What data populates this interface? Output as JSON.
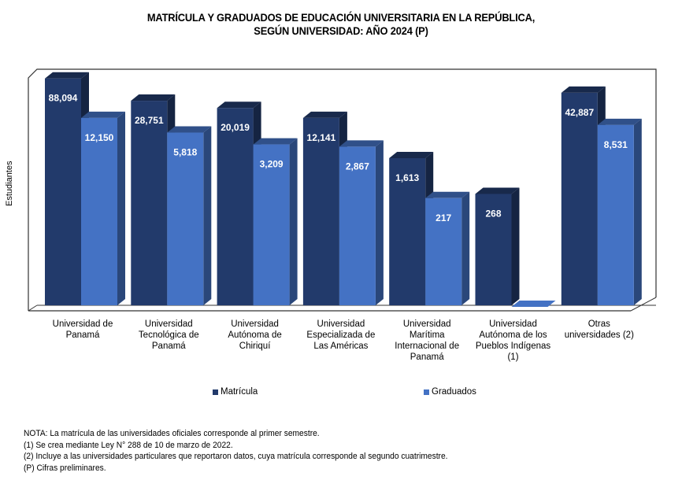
{
  "chart_data": {
    "type": "bar",
    "title": "MATRÍCULA Y GRADUADOS DE EDUCACIÓN UNIVERSITARIA EN LA REPÚBLICA,",
    "subtitle": "SEGÚN UNIVERSIDAD: AÑO 2024 (P)",
    "xlabel": "",
    "ylabel": "Estudiantes",
    "yscale": "log",
    "ylim": [
      1,
      100000
    ],
    "grid": false,
    "legend_position": "bottom",
    "categories": [
      [
        "Universidad de",
        "Panamá"
      ],
      [
        "Universidad",
        "Tecnológica de",
        "Panamá"
      ],
      [
        "Universidad",
        "Autónoma de",
        "Chiriquí"
      ],
      [
        "Universidad",
        "Especializada de",
        "Las Américas"
      ],
      [
        "Universidad",
        "Marítima",
        "Internacional de",
        "Panamá"
      ],
      [
        "Universidad",
        "Autónoma de los",
        "Pueblos Indígenas",
        "(1)"
      ],
      [
        "Otras",
        "universidades (2)"
      ]
    ],
    "series": [
      {
        "name": "Matrícula",
        "color": "#223A6B",
        "values": [
          88094,
          28751,
          20019,
          12141,
          1613,
          268,
          42887
        ],
        "labels": [
          "88,094",
          "28,751",
          "20,019",
          "12,141",
          "1,613",
          "268",
          "42,887"
        ]
      },
      {
        "name": "Graduados",
        "color": "#4472C4",
        "values": [
          12150,
          5818,
          3209,
          2867,
          217,
          0,
          8531
        ],
        "labels": [
          "12,150",
          "5,818",
          "3,209",
          "2,867",
          "217",
          "",
          "8,531"
        ]
      }
    ]
  },
  "notes": [
    "NOTA: La matrícula de las universidades  oficiales corresponde al primer semestre.",
    "(1) Se crea mediante Ley N° 288 de 10 de marzo de 2022.",
    "(2) Incluye a las universidades  particulares que reportaron  datos, cuya matrícula corresponde  al segundo  cuatrimestre.",
    "(P) Cifras  preliminares."
  ]
}
